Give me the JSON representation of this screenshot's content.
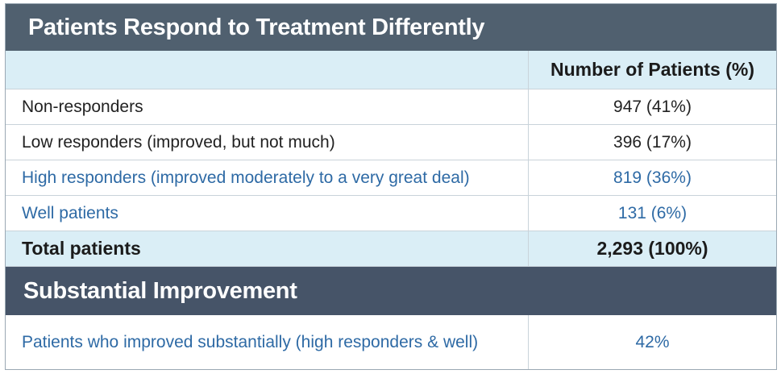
{
  "title": "Patients Respond to Treatment Differently",
  "header": {
    "col1": "",
    "col2": "Number of Patients (%)"
  },
  "rows": [
    {
      "label": "Non-responders",
      "value": "947 (41%)",
      "color": "#222222"
    },
    {
      "label": "Low responders (improved, but not much)",
      "value": "396 (17%)",
      "color": "#222222"
    },
    {
      "label": "High responders (improved moderately to a very great deal)",
      "value": "819 (36%)",
      "color": "#2e6aa5"
    },
    {
      "label": "Well patients",
      "value": "131 (6%)",
      "color": "#2e6aa5"
    }
  ],
  "total": {
    "label": "Total patients",
    "value": "2,293 (100%)"
  },
  "section2": {
    "title": "Substantial Improvement",
    "row": {
      "label": "Patients who improved substantially (high responders & well)",
      "value": "42%"
    }
  },
  "colors": {
    "title_bg": "#50606f",
    "section_bg": "#465468",
    "header_bg": "#daeef6",
    "link_blue": "#2e6aa5"
  }
}
